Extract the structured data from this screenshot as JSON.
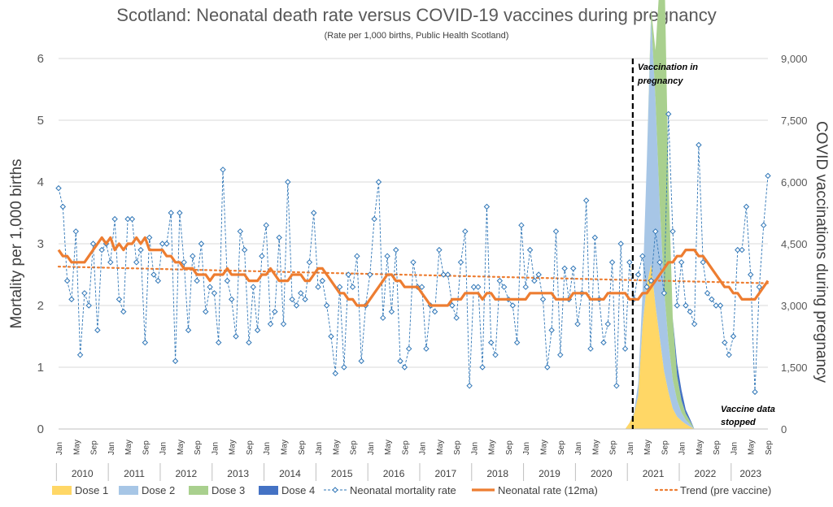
{
  "chart_data": {
    "type": "line",
    "title": "Scotland: Neonatal death rate versus COVID-19 vaccines during pregnancy",
    "subtitle": "(Rate per 1,000 births, Public Health Scotland)",
    "ylabel": "Mortality per 1,000 births",
    "y2label": "COVID vaccinations during pregnancy",
    "ylim": [
      0,
      6
    ],
    "y2lim": [
      0,
      9000
    ],
    "yticks": [
      "0",
      "1",
      "2",
      "3",
      "4",
      "5",
      "6"
    ],
    "y2ticks": [
      "0",
      "1,500",
      "3,000",
      "4,500",
      "6,000",
      "7,500",
      "9,000"
    ],
    "x_start": "2010-01",
    "month_labels": [
      "Jan",
      "May",
      "Sep"
    ],
    "years": [
      "2010",
      "2011",
      "2012",
      "2013",
      "2014",
      "2015",
      "2016",
      "2017",
      "2018",
      "2019",
      "2020",
      "2021",
      "2022",
      "2023"
    ],
    "annotations": {
      "vaccination": "Vaccination in pregnancy",
      "vaccination_date": "2021-01",
      "stopped": "Vaccine data stopped"
    },
    "colors": {
      "dose1": "#FFD766",
      "dose2": "#A7C6E6",
      "dose3": "#A9D08E",
      "dose4": "#4472C4",
      "monthly": "#2E75B6",
      "rolling": "#ED7D31",
      "trend": "#ED7D31"
    },
    "legend": [
      "Dose 1",
      "Dose 2",
      "Dose 3",
      "Dose 4",
      "Neonatal mortality rate",
      "Neonatal rate (12ma)",
      "Trend (pre vaccine)"
    ],
    "series": [
      {
        "name": "Neonatal mortality rate",
        "values": [
          3.9,
          3.6,
          2.4,
          2.1,
          3.2,
          1.2,
          2.2,
          2.0,
          3.0,
          1.6,
          2.9,
          3.0,
          2.7,
          3.4,
          2.1,
          1.9,
          3.4,
          3.4,
          2.7,
          2.9,
          1.4,
          3.1,
          2.5,
          2.4,
          3.0,
          3.0,
          3.5,
          1.1,
          3.5,
          2.7,
          1.6,
          2.8,
          2.4,
          3.0,
          1.9,
          2.3,
          2.2,
          1.4,
          4.2,
          2.4,
          2.1,
          1.5,
          3.2,
          2.9,
          1.4,
          2.3,
          1.6,
          2.8,
          3.3,
          1.7,
          1.9,
          3.1,
          1.7,
          4.0,
          2.1,
          2.0,
          2.2,
          2.1,
          2.7,
          3.5,
          2.3,
          2.4,
          2.0,
          1.5,
          0.9,
          2.3,
          1.0,
          2.5,
          2.3,
          2.8,
          1.1,
          2.0,
          2.5,
          3.4,
          4.0,
          1.8,
          2.8,
          1.9,
          2.9,
          1.1,
          1.0,
          1.3,
          2.7,
          2.3,
          2.3,
          1.3,
          2.0,
          1.9,
          2.9,
          2.5,
          2.5,
          2.0,
          1.8,
          2.7,
          3.2,
          0.7,
          2.3,
          2.3,
          1.0,
          3.6,
          1.4,
          1.2,
          2.4,
          2.3,
          2.1,
          2.0,
          1.4,
          3.3,
          2.3,
          2.9,
          2.4,
          2.5,
          2.1,
          1.0,
          1.6,
          3.2,
          1.2,
          2.6,
          2.1,
          2.6,
          1.7,
          2.2,
          3.7,
          1.3,
          3.1,
          2.1,
          1.4,
          1.7,
          2.7,
          0.7,
          3.0,
          1.3,
          2.7,
          2.1,
          2.5,
          2.8,
          2.3,
          2.4,
          3.2,
          2.7,
          2.2,
          5.1,
          3.2,
          2.0,
          2.7,
          2.0,
          1.9,
          1.7,
          4.6,
          2.7,
          2.2,
          2.1,
          2.0,
          2.0,
          1.4,
          1.2,
          1.5,
          2.9,
          2.9,
          3.6,
          2.5,
          0.6,
          2.3,
          3.3,
          4.1
        ]
      },
      {
        "name": "Neonatal rate (12ma)",
        "values": [
          2.9,
          2.8,
          2.8,
          2.7,
          2.7,
          2.7,
          2.7,
          2.8,
          2.9,
          3.0,
          3.1,
          3.0,
          3.1,
          2.9,
          3.0,
          2.9,
          3.0,
          3.0,
          3.1,
          3.0,
          3.1,
          2.9,
          2.9,
          2.9,
          2.9,
          2.8,
          2.8,
          2.7,
          2.7,
          2.6,
          2.6,
          2.6,
          2.5,
          2.5,
          2.5,
          2.4,
          2.5,
          2.5,
          2.5,
          2.6,
          2.5,
          2.5,
          2.5,
          2.5,
          2.4,
          2.4,
          2.4,
          2.5,
          2.5,
          2.6,
          2.5,
          2.4,
          2.4,
          2.4,
          2.5,
          2.5,
          2.5,
          2.4,
          2.4,
          2.5,
          2.6,
          2.6,
          2.5,
          2.4,
          2.3,
          2.2,
          2.2,
          2.1,
          2.1,
          2.0,
          2.0,
          2.0,
          2.1,
          2.2,
          2.3,
          2.4,
          2.5,
          2.5,
          2.4,
          2.4,
          2.3,
          2.3,
          2.3,
          2.3,
          2.2,
          2.1,
          2.0,
          2.0,
          2.0,
          2.0,
          2.0,
          2.1,
          2.1,
          2.1,
          2.2,
          2.2,
          2.2,
          2.2,
          2.1,
          2.2,
          2.2,
          2.1,
          2.1,
          2.1,
          2.1,
          2.1,
          2.1,
          2.1,
          2.1,
          2.2,
          2.2,
          2.2,
          2.2,
          2.2,
          2.2,
          2.1,
          2.1,
          2.1,
          2.1,
          2.2,
          2.2,
          2.2,
          2.2,
          2.1,
          2.1,
          2.1,
          2.1,
          2.2,
          2.2,
          2.2,
          2.2,
          2.2,
          2.1,
          2.1,
          2.1,
          2.2,
          2.2,
          2.3,
          2.4,
          2.5,
          2.6,
          2.7,
          2.7,
          2.8,
          2.8,
          2.9,
          2.9,
          2.9,
          2.8,
          2.8,
          2.7,
          2.6,
          2.5,
          2.4,
          2.3,
          2.3,
          2.2,
          2.2,
          2.1,
          2.1,
          2.1,
          2.1,
          2.2,
          2.3,
          2.4
        ]
      },
      {
        "name": "Trend (pre vaccine)",
        "values": [
          2.63,
          2.36
        ]
      },
      {
        "name": "Dose 1",
        "x_start": "2020-12",
        "values": [
          0,
          150,
          350,
          800,
          2500,
          3500,
          4000,
          3000,
          2200,
          1400,
          900,
          500,
          300,
          200,
          120,
          60,
          0
        ]
      },
      {
        "name": "Dose 2",
        "x_start": "2020-12",
        "values": [
          0,
          0,
          50,
          300,
          800,
          3000,
          6000,
          5000,
          3200,
          2000,
          1200,
          700,
          400,
          200,
          100,
          50,
          0
        ]
      },
      {
        "name": "Dose 3",
        "x_start": "2020-12",
        "values": [
          0,
          0,
          0,
          0,
          0,
          0,
          200,
          1200,
          5500,
          8200,
          4000,
          1500,
          600,
          300,
          150,
          80,
          0
        ]
      },
      {
        "name": "Dose 4",
        "x_start": "2020-12",
        "values": [
          0,
          0,
          0,
          0,
          0,
          0,
          0,
          0,
          0,
          0,
          0,
          0,
          300,
          250,
          100,
          50,
          0
        ]
      }
    ]
  }
}
